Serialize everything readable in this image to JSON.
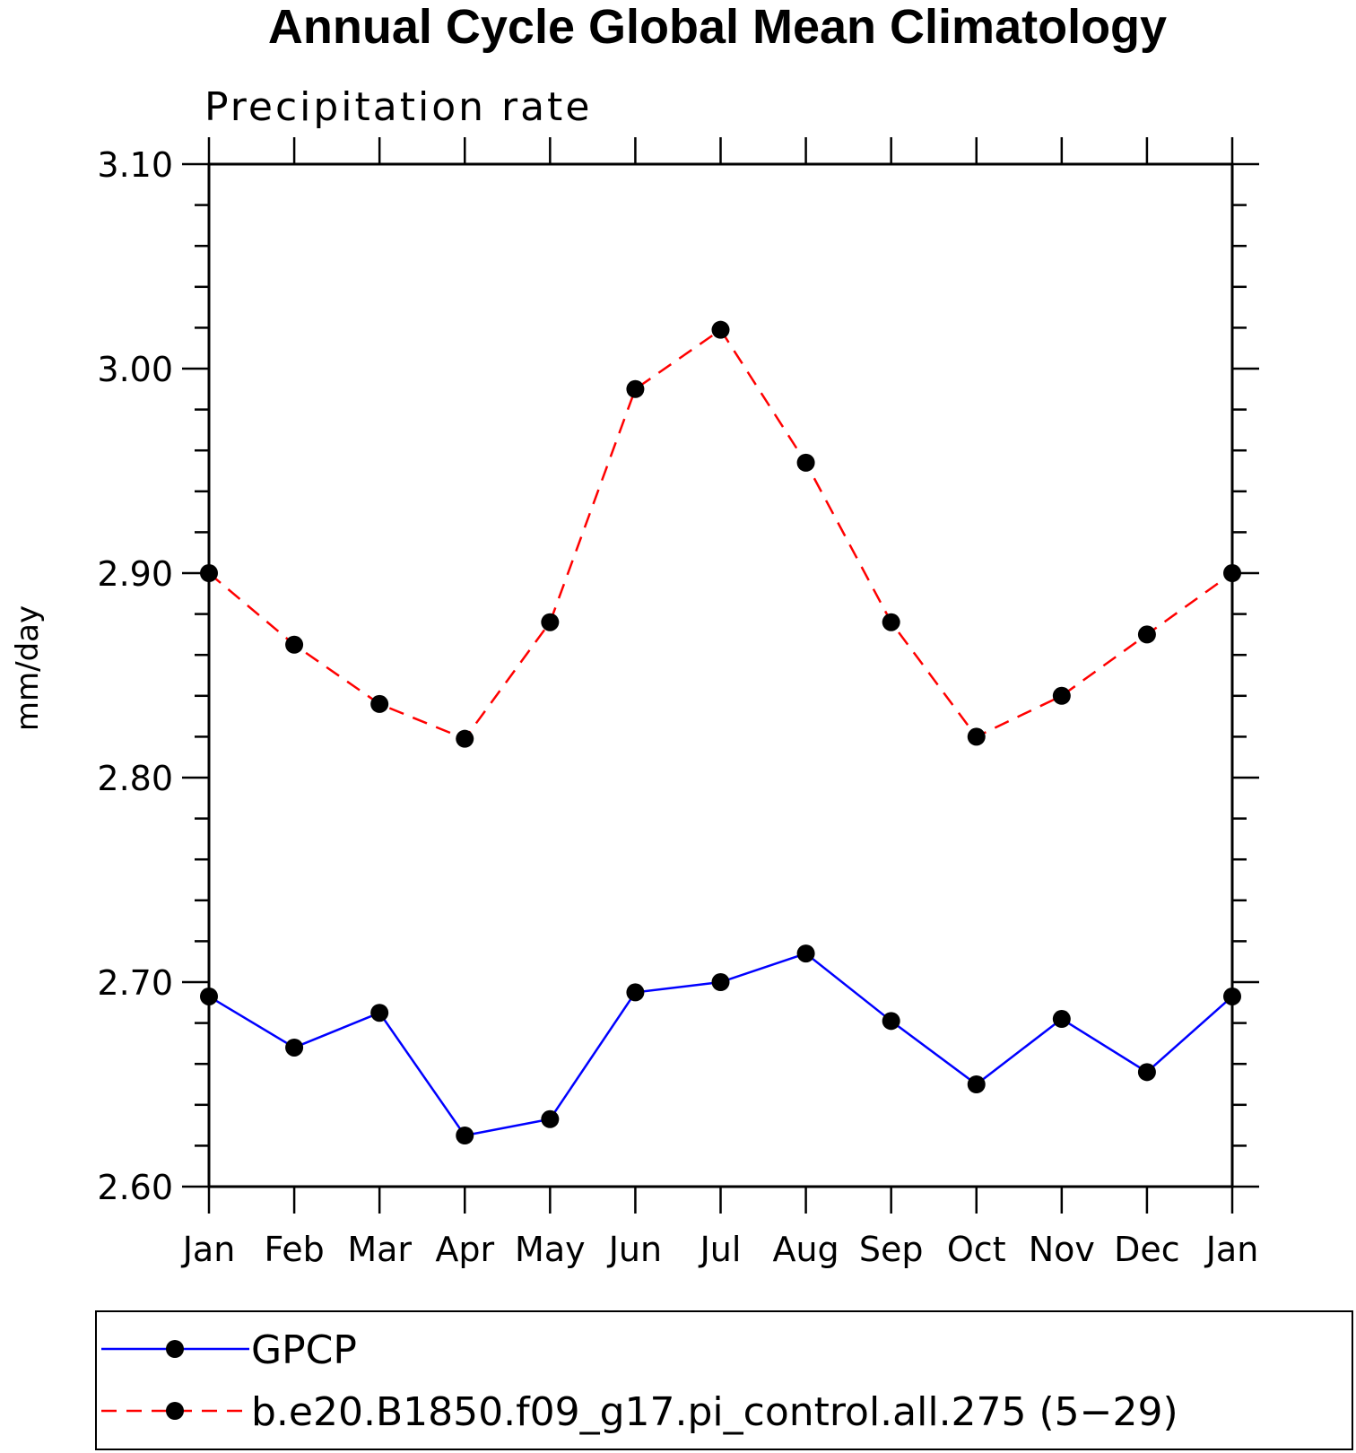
{
  "chart_data": {
    "type": "line",
    "title": "Annual Cycle Global Mean Climatology",
    "subtitle": "Precipitation rate",
    "xlabel": "",
    "ylabel": "mm/day",
    "categories": [
      "Jan",
      "Feb",
      "Mar",
      "Apr",
      "May",
      "Jun",
      "Jul",
      "Aug",
      "Sep",
      "Oct",
      "Nov",
      "Dec",
      "Jan"
    ],
    "ylim": [
      2.6,
      3.1
    ],
    "yticks": [
      "2.60",
      "2.70",
      "2.80",
      "2.90",
      "3.00",
      "3.10"
    ],
    "grid": false,
    "legend_position": "bottom",
    "series": [
      {
        "name": "GPCP",
        "color": "#0000ff",
        "line_style": "solid",
        "marker": "filled-circle",
        "values": [
          2.693,
          2.668,
          2.685,
          2.625,
          2.633,
          2.695,
          2.7,
          2.714,
          2.681,
          2.65,
          2.682,
          2.656,
          2.693
        ]
      },
      {
        "name": "b.e20.B1850.f09_g17.pi_control.all.275 (5−29)",
        "color": "#ff0000",
        "line_style": "dashed",
        "marker": "filled-circle",
        "values": [
          2.9,
          2.865,
          2.836,
          2.819,
          2.876,
          2.99,
          3.019,
          2.954,
          2.876,
          2.82,
          2.84,
          2.87,
          2.9
        ]
      }
    ]
  }
}
